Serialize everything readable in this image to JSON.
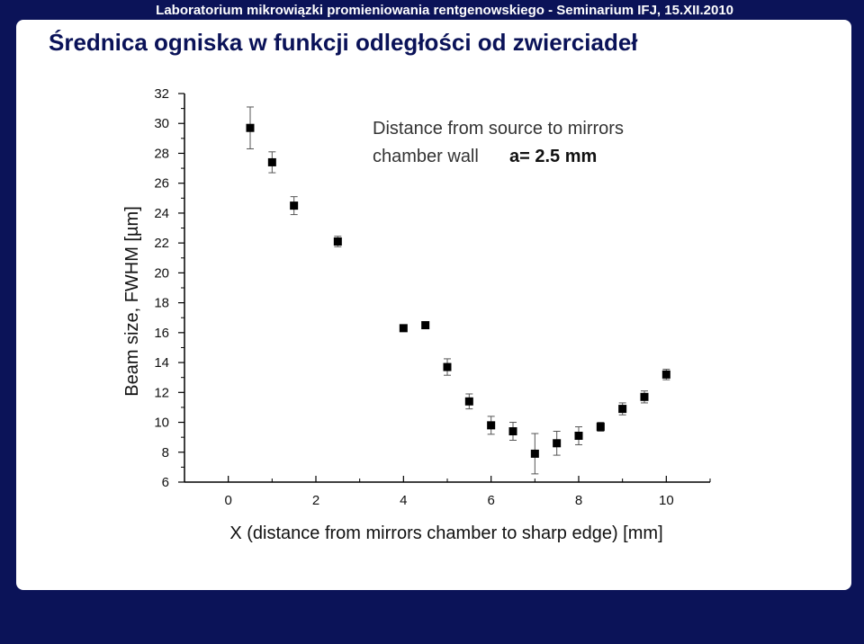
{
  "header": {
    "banner": "Laboratorium mikrowiązki promieniowania rentgenowskiego - Seminarium IFJ, 15.XII.2010"
  },
  "slide": {
    "title": "Średnica ogniska w funkcji odległości od zwierciadeł"
  },
  "colors": {
    "background": "#0b1358",
    "title": "#0a1258",
    "marker": "#000000"
  },
  "chart_data": {
    "type": "scatter",
    "xlabel": "X (distance from mirrors chamber to sharp edge) [mm]",
    "ylabel": "Beam size, FWHM [µm]",
    "xlim": [
      -1,
      11
    ],
    "ylim": [
      6,
      32
    ],
    "xticks": [
      "0",
      "2",
      "4",
      "6",
      "8",
      "10"
    ],
    "yticks": [
      "6",
      "8",
      "10",
      "12",
      "14",
      "16",
      "18",
      "20",
      "22",
      "24",
      "26",
      "28",
      "30",
      "32"
    ],
    "annotation": {
      "line1": "Distance from source to mirrors",
      "line2": "chamber wall",
      "line2_value": "a= 2.5 mm"
    },
    "series": [
      {
        "x": [
          0.5,
          1.0,
          1.5,
          2.5,
          4.0,
          4.5,
          5.0,
          5.5,
          6.0,
          6.5,
          7.0,
          7.5,
          8.0,
          8.5,
          9.0,
          9.5,
          10.0
        ],
        "y": [
          29.7,
          27.4,
          24.5,
          22.1,
          16.3,
          16.5,
          13.7,
          11.4,
          9.8,
          9.4,
          7.9,
          8.6,
          9.1,
          9.7,
          10.9,
          11.7,
          13.2
        ],
        "err": [
          1.4,
          0.7,
          0.6,
          0.35,
          0.2,
          0.2,
          0.55,
          0.5,
          0.6,
          0.6,
          1.35,
          0.8,
          0.6,
          0.3,
          0.4,
          0.4,
          0.35
        ]
      }
    ]
  }
}
